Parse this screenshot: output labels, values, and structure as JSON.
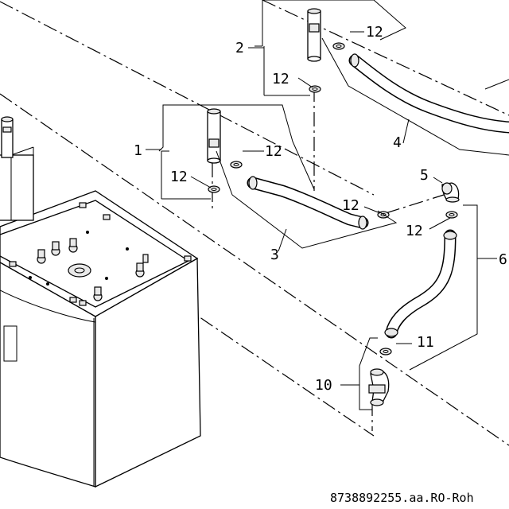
{
  "callouts": {
    "c1": "1",
    "c2": "2",
    "c3": "3",
    "c4": "4",
    "c5": "5",
    "c6": "6",
    "c10": "10",
    "c11": "11",
    "c12": "12"
  },
  "document_id": "8738892255.aa.RO-Roh"
}
